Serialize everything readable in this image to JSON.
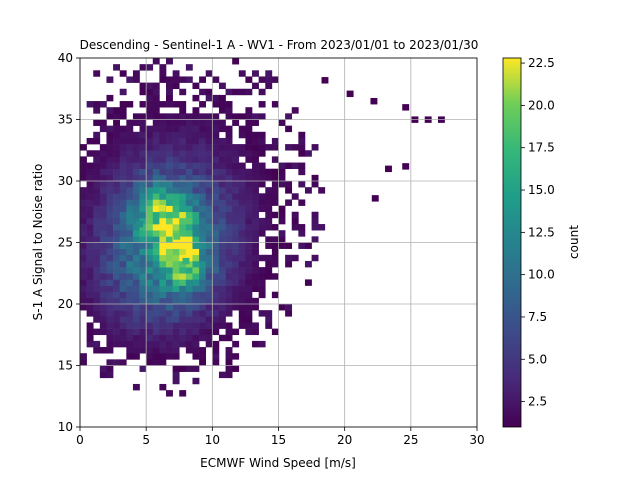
{
  "chart_data": {
    "type": "heatmap",
    "title": "Descending - Sentinel-1 A - WV1 - From 2023/01/01 to 2023/01/30",
    "xlabel": "ECMWF Wind Speed [m/s]",
    "ylabel": "S-1 A Signal to Noise ratio",
    "xlim": [
      0,
      30
    ],
    "ylim": [
      10,
      40
    ],
    "xticks": [
      "0",
      "5",
      "10",
      "15",
      "20",
      "25",
      "30"
    ],
    "yticks": [
      "10",
      "15",
      "20",
      "25",
      "30",
      "35",
      "40"
    ],
    "grid": true,
    "colormap": "viridis",
    "colorbar": {
      "label": "count",
      "min": 1,
      "max": 22.8,
      "ticks": [
        "2.5",
        "5.0",
        "7.5",
        "10.0",
        "12.5",
        "15.0",
        "17.5",
        "20.0",
        "22.5"
      ]
    },
    "bin_width_x": 0.5,
    "bin_width_y": 0.5,
    "density_peaks": [
      {
        "x": 6.2,
        "y": 27.8,
        "count": 22
      },
      {
        "x": 7.3,
        "y": 25.5,
        "count": 19
      },
      {
        "x": 8.0,
        "y": 23.5,
        "count": 17
      },
      {
        "x": 4.5,
        "y": 26.5,
        "count": 13
      }
    ],
    "outlier_bins": [
      {
        "x": 25.3,
        "y": 35.0
      },
      {
        "x": 26.3,
        "y": 35.0
      },
      {
        "x": 27.3,
        "y": 35.0
      },
      {
        "x": 24.6,
        "y": 36.0
      },
      {
        "x": 22.3,
        "y": 28.6
      },
      {
        "x": 23.3,
        "y": 31.0
      },
      {
        "x": 24.6,
        "y": 31.2
      },
      {
        "x": 22.2,
        "y": 36.5
      },
      {
        "x": 20.4,
        "y": 37.1
      },
      {
        "x": 18.5,
        "y": 38.2
      }
    ]
  }
}
